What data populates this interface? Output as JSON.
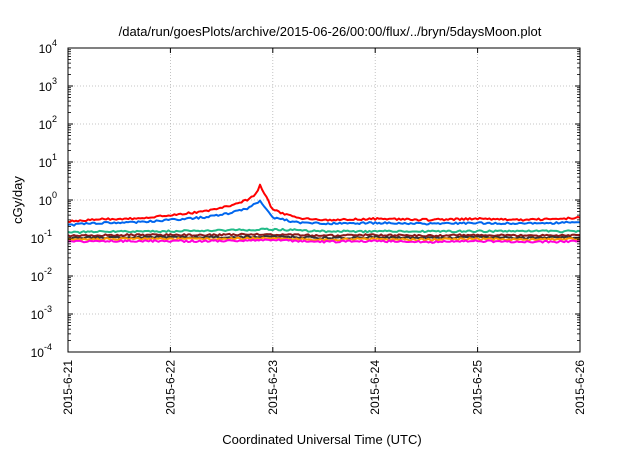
{
  "chart_data": {
    "type": "line",
    "title": "/data/run/goesPlots/archive/2015-06-26/00:00/flux/../bryn/5daysMoon.plot",
    "xlabel": "Coordinated Universal Time (UTC)",
    "ylabel": "cGy/day",
    "yscale": "log",
    "ylim": [
      0.0001,
      10000
    ],
    "xlim": [
      "2015-06-21",
      "2015-06-26"
    ],
    "grid": true,
    "x_ticks": [
      "2015-6-21",
      "2015-6-22",
      "2015-6-23",
      "2015-6-24",
      "2015-6-25",
      "2015-6-26"
    ],
    "y_ticks": [
      {
        "base": "10",
        "exp": "-4",
        "value": 0.0001
      },
      {
        "base": "10",
        "exp": "-3",
        "value": 0.001
      },
      {
        "base": "10",
        "exp": "-2",
        "value": 0.01
      },
      {
        "base": "10",
        "exp": "-1",
        "value": 0.1
      },
      {
        "base": "10",
        "exp": "0",
        "value": 1
      },
      {
        "base": "10",
        "exp": "1",
        "value": 10
      },
      {
        "base": "10",
        "exp": "2",
        "value": 100
      },
      {
        "base": "10",
        "exp": "3",
        "value": 1000
      },
      {
        "base": "10",
        "exp": "4",
        "value": 10000
      }
    ],
    "series": [
      {
        "color": "#ff0000",
        "x": [
          "2015-06-21T00:00",
          "2015-06-21T08:00",
          "2015-06-21T16:00",
          "2015-06-22T00:00",
          "2015-06-22T08:00",
          "2015-06-22T14:00",
          "2015-06-22T18:00",
          "2015-06-22T20:00",
          "2015-06-22T21:00",
          "2015-06-23T00:00",
          "2015-06-23T06:00",
          "2015-06-23T12:00",
          "2015-06-24T00:00",
          "2015-06-24T12:00",
          "2015-06-25T00:00",
          "2015-06-25T12:00",
          "2015-06-26T00:00"
        ],
        "y": [
          0.27,
          0.31,
          0.33,
          0.4,
          0.5,
          0.7,
          1.0,
          1.4,
          2.5,
          0.55,
          0.33,
          0.3,
          0.32,
          0.3,
          0.32,
          0.3,
          0.34
        ]
      },
      {
        "color": "#0066ee",
        "x": [
          "2015-06-21T00:00",
          "2015-06-21T08:00",
          "2015-06-21T16:00",
          "2015-06-22T00:00",
          "2015-06-22T08:00",
          "2015-06-22T14:00",
          "2015-06-22T18:00",
          "2015-06-22T20:00",
          "2015-06-22T21:00",
          "2015-06-23T00:00",
          "2015-06-23T06:00",
          "2015-06-23T12:00",
          "2015-06-24T00:00",
          "2015-06-24T12:00",
          "2015-06-25T00:00",
          "2015-06-25T12:00",
          "2015-06-26T00:00"
        ],
        "y": [
          0.22,
          0.25,
          0.26,
          0.3,
          0.35,
          0.45,
          0.6,
          0.8,
          1.0,
          0.35,
          0.25,
          0.24,
          0.25,
          0.24,
          0.25,
          0.24,
          0.26
        ]
      },
      {
        "color": "#22bb88",
        "x": [
          "2015-06-21T00:00",
          "2015-06-21T12:00",
          "2015-06-22T00:00",
          "2015-06-22T12:00",
          "2015-06-23T00:00",
          "2015-06-23T12:00",
          "2015-06-24T00:00",
          "2015-06-24T12:00",
          "2015-06-25T00:00",
          "2015-06-25T12:00",
          "2015-06-26T00:00"
        ],
        "y": [
          0.14,
          0.15,
          0.15,
          0.16,
          0.17,
          0.15,
          0.15,
          0.15,
          0.15,
          0.15,
          0.15
        ]
      },
      {
        "color": "#8b1a1a",
        "x": [
          "2015-06-21T00:00",
          "2015-06-21T12:00",
          "2015-06-22T00:00",
          "2015-06-22T12:00",
          "2015-06-23T00:00",
          "2015-06-23T12:00",
          "2015-06-24T00:00",
          "2015-06-24T12:00",
          "2015-06-25T00:00",
          "2015-06-25T12:00",
          "2015-06-26T00:00"
        ],
        "y": [
          0.115,
          0.12,
          0.12,
          0.12,
          0.125,
          0.115,
          0.12,
          0.115,
          0.12,
          0.115,
          0.12
        ]
      },
      {
        "color": "#333333",
        "x": [
          "2015-06-21T00:00",
          "2015-06-21T12:00",
          "2015-06-22T00:00",
          "2015-06-22T12:00",
          "2015-06-23T00:00",
          "2015-06-23T12:00",
          "2015-06-24T00:00",
          "2015-06-24T12:00",
          "2015-06-25T00:00",
          "2015-06-25T12:00",
          "2015-06-26T00:00"
        ],
        "y": [
          0.1,
          0.105,
          0.105,
          0.105,
          0.11,
          0.1,
          0.105,
          0.1,
          0.105,
          0.1,
          0.105
        ]
      },
      {
        "color": "#ff9900",
        "x": [
          "2015-06-21T00:00",
          "2015-06-21T12:00",
          "2015-06-22T00:00",
          "2015-06-22T12:00",
          "2015-06-23T00:00",
          "2015-06-23T12:00",
          "2015-06-24T00:00",
          "2015-06-24T12:00",
          "2015-06-25T00:00",
          "2015-06-25T12:00",
          "2015-06-26T00:00"
        ],
        "y": [
          0.09,
          0.095,
          0.095,
          0.095,
          0.1,
          0.09,
          0.095,
          0.09,
          0.095,
          0.09,
          0.095
        ]
      },
      {
        "color": "#ff00dd",
        "x": [
          "2015-06-21T00:00",
          "2015-06-21T12:00",
          "2015-06-22T00:00",
          "2015-06-22T12:00",
          "2015-06-23T00:00",
          "2015-06-23T12:00",
          "2015-06-24T00:00",
          "2015-06-24T12:00",
          "2015-06-25T00:00",
          "2015-06-25T12:00",
          "2015-06-26T00:00"
        ],
        "y": [
          0.08,
          0.083,
          0.083,
          0.083,
          0.088,
          0.08,
          0.083,
          0.078,
          0.083,
          0.078,
          0.082
        ]
      }
    ]
  }
}
